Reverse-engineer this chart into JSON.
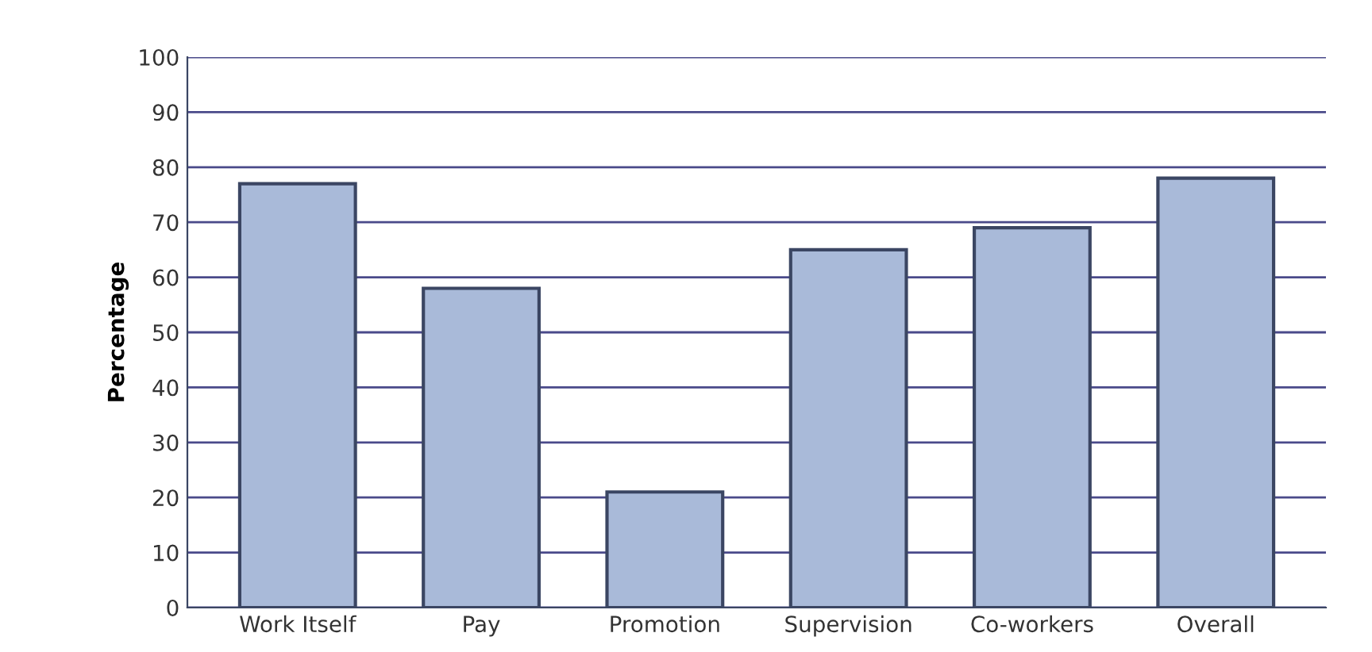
{
  "chart_data": {
    "type": "bar",
    "ylabel": "Percentage",
    "categories": [
      "Work Itself",
      "Pay",
      "Promotion",
      "Supervision",
      "Co-workers",
      "Overall"
    ],
    "values": [
      77,
      58,
      21,
      65,
      69,
      78
    ],
    "color": "#a9bad9",
    "ylim": [
      0,
      100
    ],
    "yticks": [
      0,
      10,
      20,
      30,
      40,
      50,
      60,
      70,
      80,
      90,
      100
    ],
    "grid": "y"
  }
}
